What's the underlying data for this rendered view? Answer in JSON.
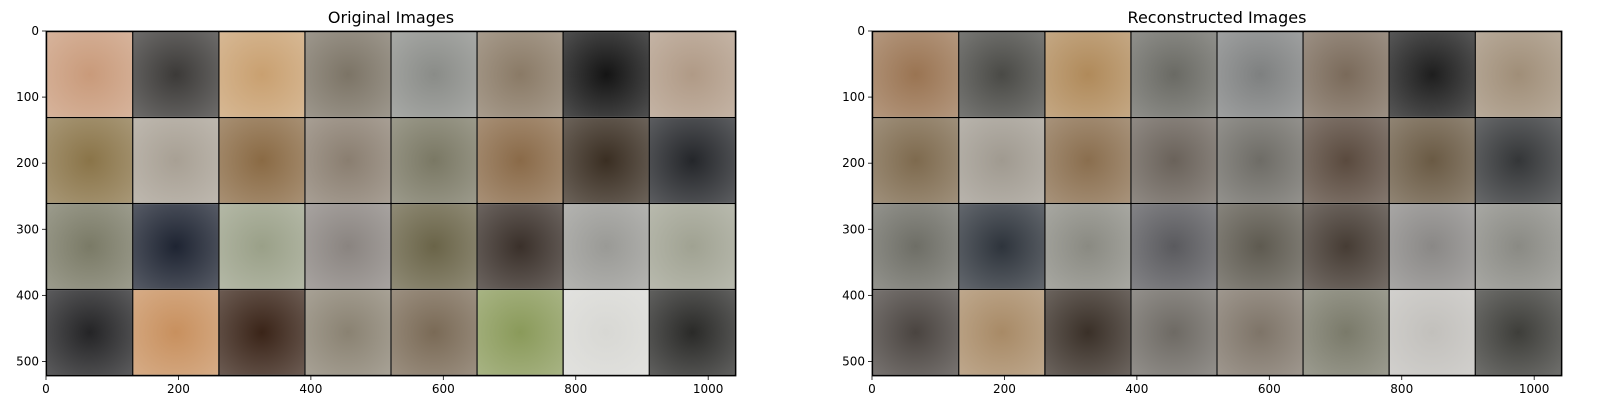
{
  "chart_data": [
    {
      "type": "image",
      "title": "Original Images",
      "xlim": [
        0,
        1042
      ],
      "ylim": [
        522,
        0
      ],
      "xticks": [
        0,
        200,
        400,
        600,
        800,
        1000
      ],
      "yticks": [
        0,
        100,
        200,
        300,
        400,
        500
      ],
      "grid_rows": 4,
      "grid_cols": 8,
      "tile_size": 128,
      "tile_gap": 2,
      "grid_line_color": "#000000",
      "tiles": [
        [
          "#c99a7a",
          "#3c3a38",
          "#c9a070",
          "#7c7466",
          "#8a8c88",
          "#8a7a66",
          "#141414",
          "#b09a86"
        ],
        [
          "#8a7448",
          "#a8a094",
          "#8a6a44",
          "#8a7e70",
          "#7a7864",
          "#8a6a48",
          "#3a2e22",
          "#24262a"
        ],
        [
          "#7a7a66",
          "#1e2432",
          "#9aa088",
          "#8a8480",
          "#6a6448",
          "#3a302a",
          "#9a9a96",
          "#a0a292"
        ],
        [
          "#242426",
          "#c8905e",
          "#3a2418",
          "#8a8272",
          "#7a6a56",
          "#8a9a5a",
          "#d8d8d4",
          "#2a2a28"
        ]
      ]
    },
    {
      "type": "image",
      "title": "Reconstructed Images",
      "xlim": [
        0,
        1042
      ],
      "ylim": [
        522,
        0
      ],
      "xticks": [
        0,
        200,
        400,
        600,
        800,
        1000
      ],
      "yticks": [
        0,
        100,
        200,
        300,
        400,
        500
      ],
      "grid_rows": 4,
      "grid_cols": 8,
      "tile_size": 128,
      "tile_gap": 2,
      "grid_line_color": "#000000",
      "tiles": [
        [
          "#9a7452",
          "#4a4a46",
          "#b08a5a",
          "#6a6a64",
          "#7e8080",
          "#7a6a5a",
          "#1e1e1e",
          "#a08e78"
        ],
        [
          "#7e6a4e",
          "#a09a90",
          "#8a6e4e",
          "#6a625a",
          "#6e6c66",
          "#5a4a3e",
          "#6a5a44",
          "#343638"
        ],
        [
          "#6e6e66",
          "#2e343c",
          "#8a8a82",
          "#5a5a5e",
          "#5e5a50",
          "#463c34",
          "#8a8886",
          "#8a8a84"
        ],
        [
          "#4a4440",
          "#a88a66",
          "#3a3028",
          "#6e6a64",
          "#7e7468",
          "#7a7a6a",
          "#c2c0bc",
          "#3e3e3a"
        ]
      ]
    }
  ]
}
